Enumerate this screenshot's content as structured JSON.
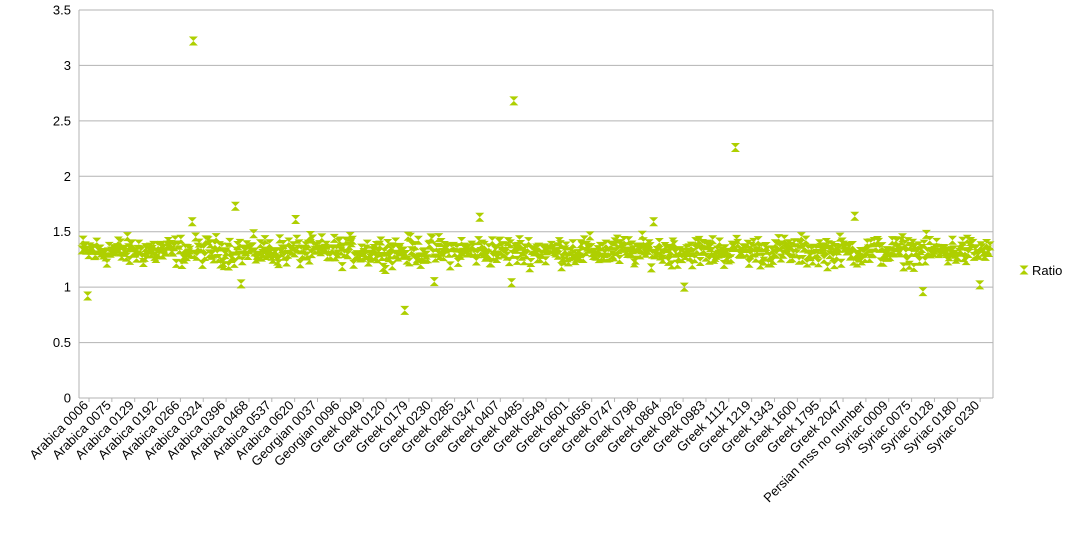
{
  "chart_data": {
    "type": "scatter",
    "title": "",
    "xlabel": "",
    "ylabel": "",
    "ylim": [
      0,
      3.5
    ],
    "y_ticks": [
      "0",
      "0.5",
      "1",
      "1.5",
      "2",
      "2.5",
      "3",
      "3.5"
    ],
    "grid": true,
    "legend_position": "right",
    "marker": "hourglass",
    "series_color": "#aecf00",
    "x_tick_labels": [
      "Arabica 0006",
      "Arabica 0075",
      "Arabica 0129",
      "Arabica 0192",
      "Arabica 0266",
      "Arabica 0324",
      "Arabica 0396",
      "Arabica 0468",
      "Arabica 0537",
      "Arabica 0620",
      "Georgian 0037",
      "Georgian 0096",
      "Greek 0049",
      "Greek 0120",
      "Greek 0179",
      "Greek 0230",
      "Greek 0285",
      "Greek 0347",
      "Greek 0407",
      "Greek 0485",
      "Greek 0549",
      "Greek 0601",
      "Greek 0656",
      "Greek 0747",
      "Greek 0798",
      "Greek 0864",
      "Greek 0926",
      "Greek 0983",
      "Greek 1112",
      "Greek 1219",
      "Greek 1343",
      "Greek 1600",
      "Greek 1795",
      "Greek 2047",
      "Persian mss no number",
      "Syriac 0009",
      "Syriac 0075",
      "Syriac 0128",
      "Syriac 0180",
      "Syriac 0230"
    ],
    "point_count": 800,
    "band": {
      "typical_low": 1.15,
      "typical_high": 1.5
    },
    "outliers": [
      {
        "index": 98,
        "y": 3.22
      },
      {
        "index": 380,
        "y": 2.68
      },
      {
        "index": 575,
        "y": 2.26
      },
      {
        "index": 284,
        "y": 0.79
      },
      {
        "index": 5,
        "y": 0.92
      },
      {
        "index": 740,
        "y": 0.96
      },
      {
        "index": 135,
        "y": 1.73
      },
      {
        "index": 350,
        "y": 1.63
      },
      {
        "index": 680,
        "y": 1.64
      },
      {
        "index": 503,
        "y": 1.59
      },
      {
        "index": 188,
        "y": 1.61
      },
      {
        "index": 97,
        "y": 1.59
      },
      {
        "index": 530,
        "y": 1.0
      },
      {
        "index": 310,
        "y": 1.05
      },
      {
        "index": 378,
        "y": 1.04
      },
      {
        "index": 140,
        "y": 1.03
      },
      {
        "index": 790,
        "y": 1.02
      }
    ],
    "series": [
      {
        "name": "Ratio"
      }
    ]
  }
}
